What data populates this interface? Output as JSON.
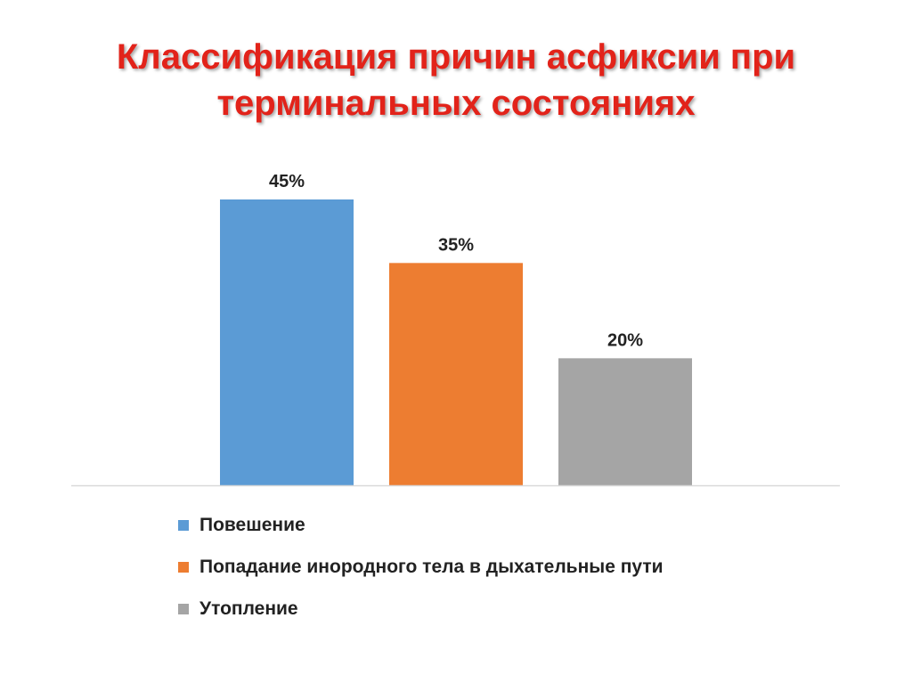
{
  "title": {
    "line1": "Классификация причин асфиксии при",
    "line2": "терминальных состояниях"
  },
  "colors": {
    "title": "#e2231a",
    "axis": "#d9d9d9"
  },
  "chart_data": {
    "type": "bar",
    "title": "Классификация причин асфиксии при терминальных состояниях",
    "ylim": [
      0,
      45
    ],
    "grid": false,
    "legend_position": "bottom",
    "series": [
      {
        "name": "Повешение",
        "value": 45,
        "label": "45%",
        "color": "#5b9bd5"
      },
      {
        "name": "Попадание инородного тела в дыхательные пути",
        "value": 35,
        "label": "35%",
        "color": "#ed7d31"
      },
      {
        "name": "Утопление",
        "value": 20,
        "label": "20%",
        "color": "#a5a5a5"
      }
    ]
  }
}
